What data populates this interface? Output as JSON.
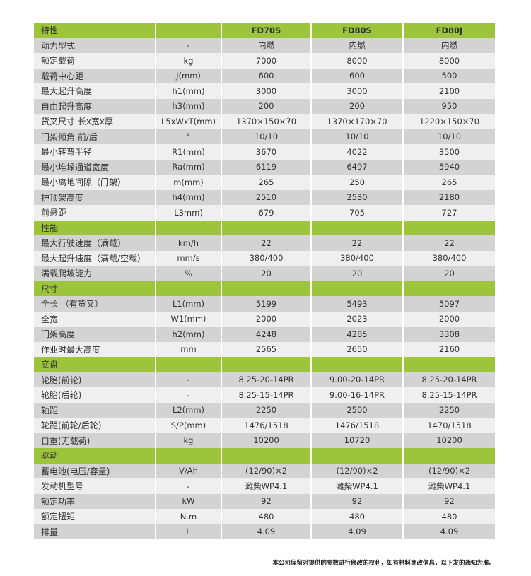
{
  "colors": {
    "section_header": "#9cc53b",
    "row_dark": "#d3d3d3",
    "row_light": "#efefef"
  },
  "models": [
    "FD70S",
    "FD80S",
    "FD80J"
  ],
  "sections": [
    {
      "title": "特性",
      "rows": [
        [
          "动力型式",
          "-",
          "内燃",
          "内燃",
          "内燃"
        ],
        [
          "额定载荷",
          "kg",
          "7000",
          "8000",
          "8000"
        ],
        [
          "载荷中心距",
          "J(mm)",
          "600",
          "600",
          "500"
        ],
        [
          "最大起升高度",
          "h1(mm)",
          "3000",
          "3000",
          "2100"
        ],
        [
          "自由起升高度",
          "h3(mm)",
          "200",
          "200",
          "950"
        ],
        [
          "货叉尺寸 长x宽x厚",
          "L5xWxT(mm)",
          "1370×150×70",
          "1370×170×70",
          "1220×150×70"
        ],
        [
          "门架倾角 前/后",
          "°",
          "10/10",
          "10/10",
          "10/10"
        ],
        [
          "最小转弯半径",
          "R1(mm)",
          "3670",
          "4022",
          "3500"
        ],
        [
          "最小堆垛通道宽度",
          "Ra(mm)",
          "6119",
          "6497",
          "5940"
        ],
        [
          "最小离地间隙（门架）",
          "m(mm)",
          "265",
          "250",
          "265"
        ],
        [
          "护顶架高度",
          "h4(mm)",
          "2510",
          "2530",
          "2180"
        ],
        [
          "前悬距",
          "L3mm)",
          "679",
          "705",
          "727"
        ]
      ]
    },
    {
      "title": "性能",
      "rows": [
        [
          "最大行驶速度（满载）",
          "km/h",
          "22",
          "22",
          "22"
        ],
        [
          "最大起升速度（满载/空载）",
          "mm/s",
          "380/400",
          "380/400",
          "380/400"
        ],
        [
          "满载爬坡能力",
          "%",
          "20",
          "20",
          "20"
        ]
      ]
    },
    {
      "title": "尺寸",
      "rows": [
        [
          "全长 （有货叉）",
          "L1(mm)",
          "5199",
          "5493",
          "5097"
        ],
        [
          "全宽",
          "W1(mm)",
          "2000",
          "2023",
          "2000"
        ],
        [
          "门架高度",
          "h2(mm)",
          "4248",
          "4285",
          "3308"
        ],
        [
          "作业时最大高度",
          "mm",
          "2565",
          "2650",
          "2160"
        ]
      ]
    },
    {
      "title": "底盘",
      "rows": [
        [
          "轮胎(前轮)",
          "-",
          "8.25-20-14PR",
          "9.00-20-14PR",
          "8.25-20-14PR"
        ],
        [
          "轮胎(后轮)",
          "-",
          "8.25-15-14PR",
          "9.00-16-14PR",
          "8.25-15-14PR"
        ],
        [
          "轴距",
          "L2(mm)",
          "2250",
          "2500",
          "2250"
        ],
        [
          "轮距(前轮/后轮)",
          "S/P(mm)",
          "1476/1518",
          "1476/1518",
          "1470/1518"
        ],
        [
          "自重(无载荷)",
          "kg",
          "10200",
          "10720",
          "10200"
        ]
      ]
    },
    {
      "title": "驱动",
      "rows": [
        [
          "蓄电池(电压/容量)",
          "V/Ah",
          "(12/90)×2",
          "(12/90)×2",
          "(12/90)×2"
        ],
        [
          "发动机型号",
          "-",
          "潍柴WP4.1",
          "潍柴WP4.1",
          "潍柴WP4.1"
        ],
        [
          "额定功率",
          "kW",
          "92",
          "92",
          "92"
        ],
        [
          "额定扭矩",
          "N.m",
          "480",
          "480",
          "480"
        ],
        [
          "排量",
          "L",
          "4.09",
          "4.09",
          "4.09"
        ]
      ]
    }
  ],
  "footnote": "本公司保留对提供的参数进行修改的权利，如有材料商改信息，以下发的通知为准。"
}
